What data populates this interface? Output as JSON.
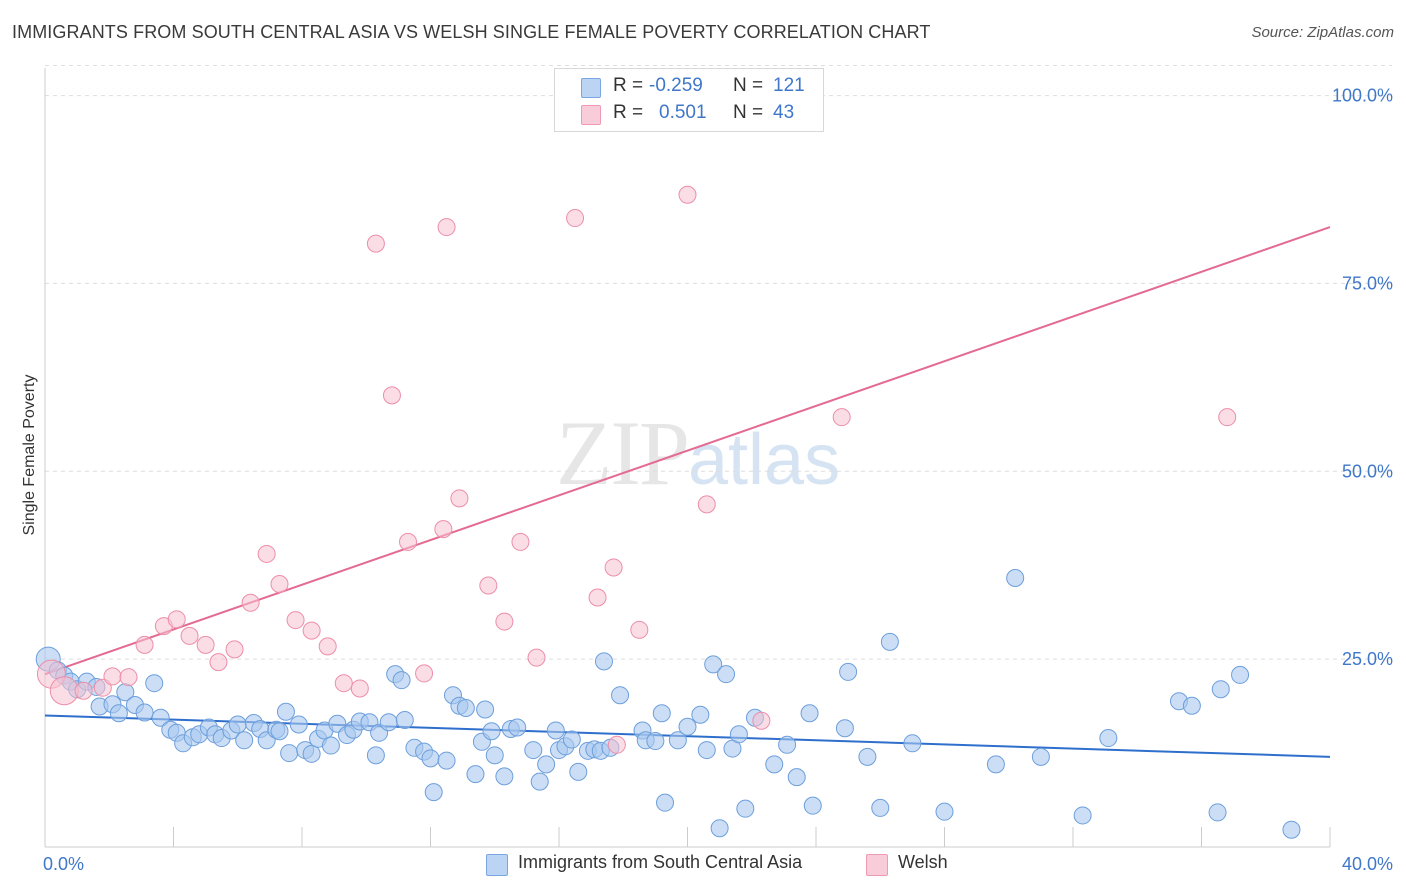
{
  "title": "IMMIGRANTS FROM SOUTH CENTRAL ASIA VS WELSH SINGLE FEMALE POVERTY CORRELATION CHART",
  "source": "Source: ZipAtlas.com",
  "watermark": {
    "zip": "ZIP",
    "atlas": "atlas"
  },
  "legend": {
    "rows": [
      {
        "r_label": "R =",
        "r_value": "-0.259",
        "n_label": "N =",
        "n_value": "121"
      },
      {
        "r_label": "R =",
        "r_value": "0.501",
        "n_label": "N =",
        "n_value": "43"
      }
    ]
  },
  "colors": {
    "blue_fill": "#a9c8ef",
    "blue_stroke": "#6d9fdc",
    "blue_line": "#2f6fcc",
    "pink_fill": "#f7c1d0",
    "pink_stroke": "#ec8ea9",
    "pink_line": "#e46a92",
    "tick_text": "#3f77c9",
    "grid": "#dddddd"
  },
  "chart_data": {
    "type": "scatter",
    "title": "IMMIGRANTS FROM SOUTH CENTRAL ASIA VS WELSH SINGLE FEMALE POVERTY CORRELATION CHART",
    "xlabel": "",
    "ylabel": "Single Female Poverty",
    "xlim": [
      0,
      40
    ],
    "ylim": [
      0,
      105
    ],
    "x_tick_labels": [
      "0.0%",
      "40.0%"
    ],
    "y_ticks": [
      25,
      50,
      75,
      100
    ],
    "y_tick_labels": [
      "25.0%",
      "50.0%",
      "75.0%",
      "100.0%"
    ],
    "x_minor_ticks": [
      4,
      8,
      12,
      16,
      20,
      24,
      28,
      32,
      36
    ],
    "grid": true,
    "legend_position": "top-center",
    "bottom_legend": [
      "Immigrants from South Central Asia",
      "Welsh"
    ],
    "series": [
      {
        "name": "Immigrants from South Central Asia",
        "color": "#a9c8ef",
        "trend": {
          "x": [
            0,
            40
          ],
          "y": [
            17.5,
            12.0
          ]
        },
        "points": [
          [
            0.1,
            25.0
          ],
          [
            0.4,
            23.5
          ],
          [
            0.6,
            22.8
          ],
          [
            0.8,
            22.0
          ],
          [
            1.0,
            21.0
          ],
          [
            1.3,
            22.0
          ],
          [
            1.6,
            21.3
          ],
          [
            1.7,
            18.7
          ],
          [
            2.1,
            19.0
          ],
          [
            2.3,
            17.8
          ],
          [
            2.5,
            20.6
          ],
          [
            2.8,
            18.9
          ],
          [
            3.1,
            17.9
          ],
          [
            3.4,
            21.8
          ],
          [
            3.6,
            17.2
          ],
          [
            3.9,
            15.6
          ],
          [
            4.1,
            15.2
          ],
          [
            4.3,
            13.8
          ],
          [
            4.6,
            14.6
          ],
          [
            4.8,
            15.0
          ],
          [
            5.1,
            15.9
          ],
          [
            5.3,
            15.0
          ],
          [
            5.5,
            14.5
          ],
          [
            5.8,
            15.5
          ],
          [
            6.0,
            16.3
          ],
          [
            6.2,
            14.2
          ],
          [
            6.5,
            16.5
          ],
          [
            6.7,
            15.7
          ],
          [
            6.9,
            14.2
          ],
          [
            7.2,
            15.6
          ],
          [
            7.3,
            15.4
          ],
          [
            7.5,
            18.0
          ],
          [
            7.6,
            12.5
          ],
          [
            7.9,
            16.3
          ],
          [
            8.1,
            12.9
          ],
          [
            8.3,
            12.4
          ],
          [
            8.5,
            14.4
          ],
          [
            8.7,
            15.5
          ],
          [
            8.9,
            13.5
          ],
          [
            9.1,
            16.4
          ],
          [
            9.4,
            14.9
          ],
          [
            9.6,
            15.6
          ],
          [
            9.8,
            16.7
          ],
          [
            10.1,
            16.6
          ],
          [
            10.3,
            12.2
          ],
          [
            10.4,
            15.2
          ],
          [
            10.7,
            16.6
          ],
          [
            10.9,
            23.0
          ],
          [
            11.1,
            22.2
          ],
          [
            11.2,
            16.9
          ],
          [
            11.5,
            13.2
          ],
          [
            11.8,
            12.7
          ],
          [
            12.0,
            11.8
          ],
          [
            12.1,
            7.3
          ],
          [
            12.5,
            11.5
          ],
          [
            12.7,
            20.2
          ],
          [
            12.9,
            18.8
          ],
          [
            13.1,
            18.5
          ],
          [
            13.4,
            9.7
          ],
          [
            13.6,
            14.0
          ],
          [
            13.7,
            18.3
          ],
          [
            13.9,
            15.4
          ],
          [
            14.0,
            12.2
          ],
          [
            14.3,
            9.4
          ],
          [
            14.5,
            15.7
          ],
          [
            14.7,
            15.9
          ],
          [
            15.2,
            12.9
          ],
          [
            15.4,
            8.7
          ],
          [
            15.6,
            11.0
          ],
          [
            15.9,
            15.5
          ],
          [
            16.0,
            12.9
          ],
          [
            16.2,
            13.4
          ],
          [
            16.4,
            14.3
          ],
          [
            16.6,
            10.0
          ],
          [
            16.9,
            12.8
          ],
          [
            17.1,
            13.0
          ],
          [
            17.3,
            12.8
          ],
          [
            17.4,
            24.7
          ],
          [
            17.6,
            13.2
          ],
          [
            17.9,
            20.2
          ],
          [
            18.6,
            15.5
          ],
          [
            18.7,
            14.2
          ],
          [
            19.0,
            14.1
          ],
          [
            19.2,
            17.8
          ],
          [
            19.3,
            5.9
          ],
          [
            19.7,
            14.2
          ],
          [
            20.0,
            16.0
          ],
          [
            20.4,
            17.6
          ],
          [
            20.6,
            12.9
          ],
          [
            20.8,
            24.3
          ],
          [
            21.0,
            2.5
          ],
          [
            21.2,
            23.0
          ],
          [
            21.4,
            13.1
          ],
          [
            21.6,
            15.0
          ],
          [
            21.8,
            5.1
          ],
          [
            22.1,
            17.2
          ],
          [
            22.7,
            11.0
          ],
          [
            23.1,
            13.6
          ],
          [
            23.4,
            9.3
          ],
          [
            23.8,
            17.8
          ],
          [
            23.9,
            5.5
          ],
          [
            24.9,
            15.8
          ],
          [
            25.0,
            23.3
          ],
          [
            25.6,
            12.0
          ],
          [
            26.0,
            5.2
          ],
          [
            26.3,
            27.3
          ],
          [
            27.0,
            13.8
          ],
          [
            28.0,
            4.7
          ],
          [
            29.6,
            11.0
          ],
          [
            30.2,
            35.8
          ],
          [
            31.0,
            12.0
          ],
          [
            32.3,
            4.2
          ],
          [
            33.1,
            14.5
          ],
          [
            35.3,
            19.4
          ],
          [
            35.7,
            18.8
          ],
          [
            36.5,
            4.6
          ],
          [
            36.6,
            21.0
          ],
          [
            37.2,
            22.9
          ],
          [
            38.8,
            2.3
          ]
        ]
      },
      {
        "name": "Welsh",
        "color": "#f7c1d0",
        "trend": {
          "x": [
            0,
            40
          ],
          "y": [
            23.0,
            82.5
          ]
        },
        "points": [
          [
            0.2,
            23.0
          ],
          [
            0.6,
            20.8
          ],
          [
            1.2,
            20.8
          ],
          [
            1.8,
            21.2
          ],
          [
            2.1,
            22.7
          ],
          [
            2.6,
            22.6
          ],
          [
            3.1,
            26.9
          ],
          [
            3.7,
            29.4
          ],
          [
            4.1,
            30.3
          ],
          [
            4.5,
            28.1
          ],
          [
            5.0,
            26.9
          ],
          [
            5.4,
            24.6
          ],
          [
            5.9,
            26.3
          ],
          [
            6.4,
            32.5
          ],
          [
            6.9,
            39.0
          ],
          [
            7.3,
            35.0
          ],
          [
            7.8,
            30.2
          ],
          [
            8.3,
            28.8
          ],
          [
            8.8,
            26.7
          ],
          [
            9.3,
            21.8
          ],
          [
            9.8,
            21.1
          ],
          [
            10.3,
            80.3
          ],
          [
            10.8,
            60.1
          ],
          [
            11.3,
            40.6
          ],
          [
            11.8,
            23.1
          ],
          [
            12.4,
            42.3
          ],
          [
            12.5,
            82.5
          ],
          [
            12.9,
            46.4
          ],
          [
            13.8,
            34.8
          ],
          [
            14.3,
            30.0
          ],
          [
            14.8,
            40.6
          ],
          [
            15.3,
            25.2
          ],
          [
            16.5,
            83.7
          ],
          [
            17.2,
            33.2
          ],
          [
            17.7,
            37.2
          ],
          [
            17.8,
            13.6
          ],
          [
            18.5,
            28.9
          ],
          [
            19.3,
            100.0
          ],
          [
            20.0,
            86.8
          ],
          [
            20.6,
            45.6
          ],
          [
            22.3,
            16.8
          ],
          [
            24.8,
            57.2
          ],
          [
            36.8,
            57.2
          ]
        ]
      }
    ]
  }
}
